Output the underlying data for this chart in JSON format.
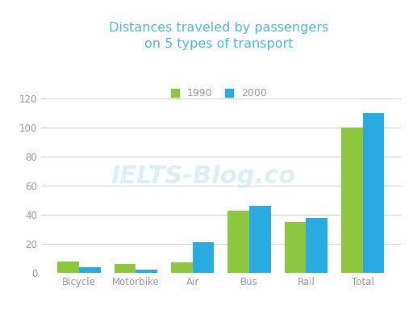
{
  "title": "Distances traveled by passengers\non 5 types of transport",
  "categories": [
    "Bicycle",
    "Motorbike",
    "Air",
    "Bus",
    "Rail",
    "Total"
  ],
  "values_1990": [
    8,
    6,
    7,
    43,
    35,
    100
  ],
  "values_2000": [
    4,
    2,
    21,
    46,
    38,
    110
  ],
  "color_1990": "#8dc63f",
  "color_2000": "#29abe2",
  "title_color": "#4db8d4",
  "legend_labels": [
    "1990",
    "2000"
  ],
  "ylim": [
    0,
    128
  ],
  "yticks": [
    0,
    20,
    40,
    60,
    80,
    100,
    120
  ],
  "bar_width": 0.38,
  "background_color": "#ffffff",
  "grid_color": "#d0d0d0",
  "tick_color": "#999999",
  "watermark": "IELTS-Blog.co"
}
